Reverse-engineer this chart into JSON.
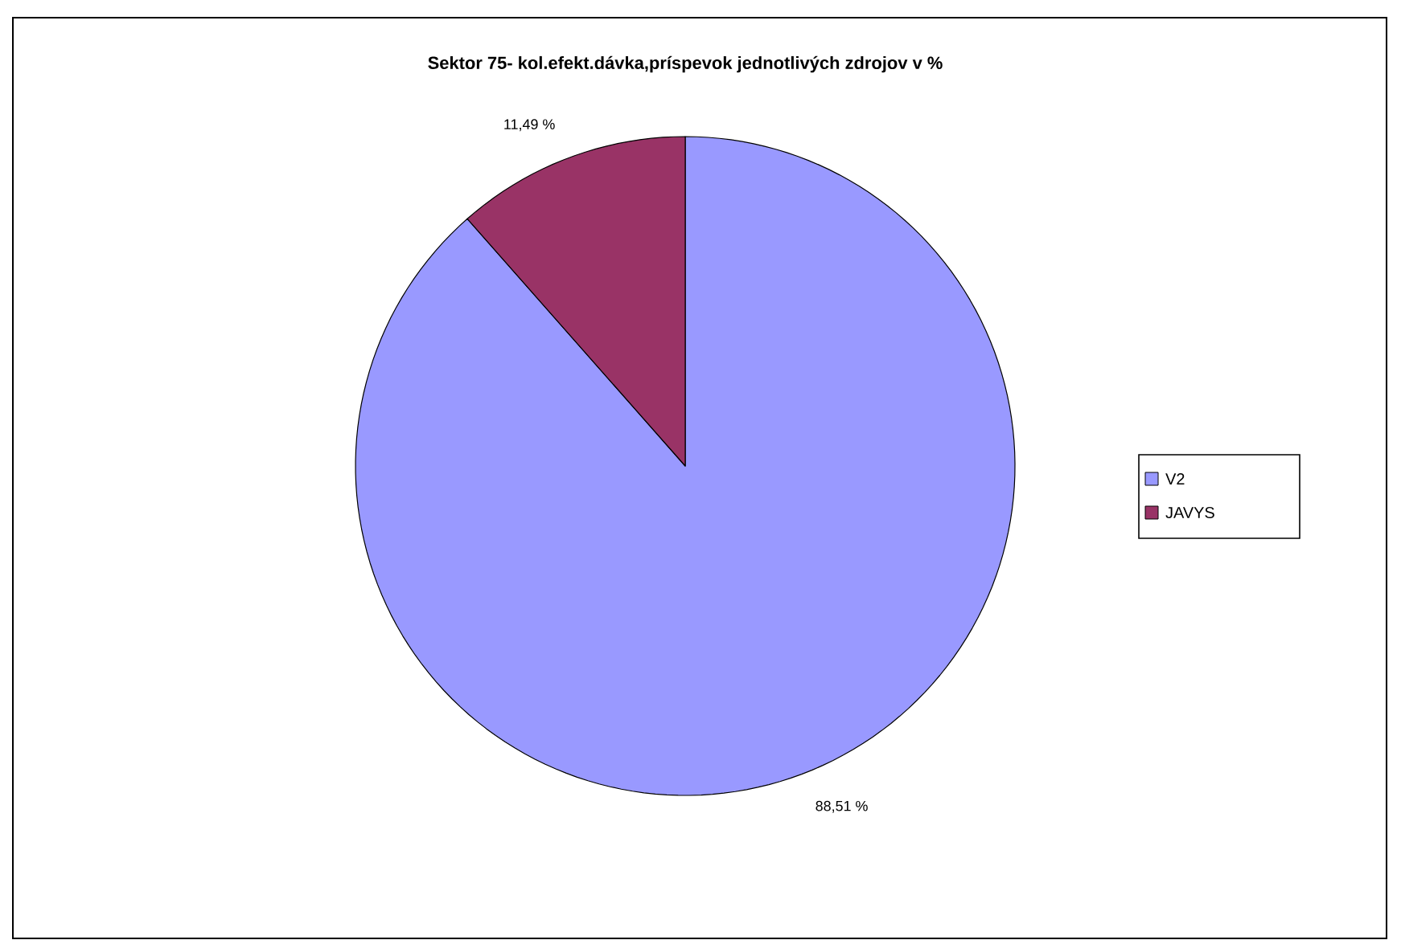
{
  "chart_data": {
    "type": "pie",
    "title": "Sektor 75- kol.efekt.dávka,príspevok jednotlivých zdrojov v %",
    "categories": [
      "V2",
      "JAVYS"
    ],
    "values": [
      88.51,
      11.49
    ],
    "value_labels": [
      "88,51 %",
      "11,49 %"
    ],
    "colors": [
      "#9999ff",
      "#993366"
    ],
    "legend": "right"
  }
}
